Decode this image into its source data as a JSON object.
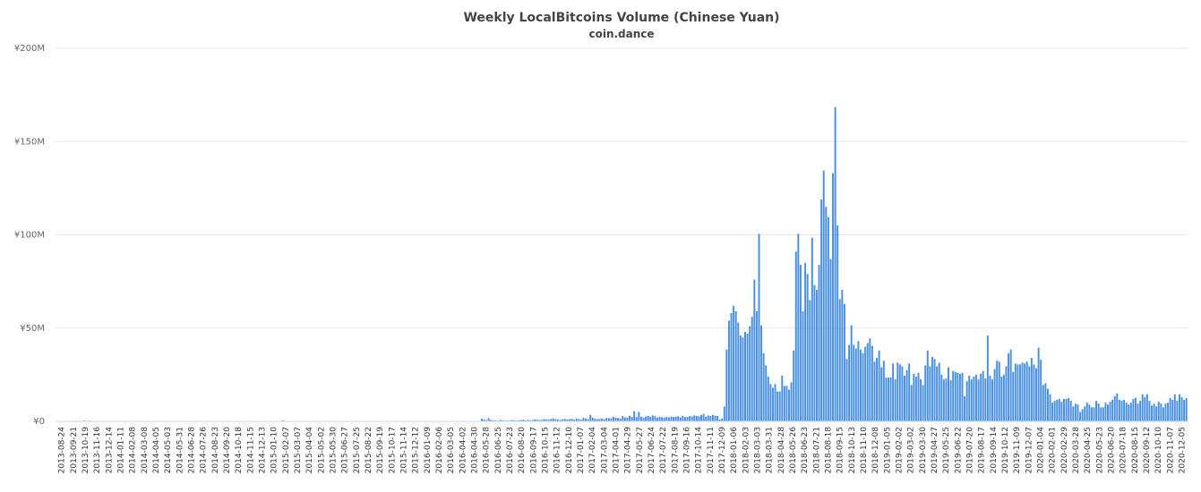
{
  "chart_data": {
    "type": "bar",
    "title": "Weekly LocalBitcoins Volume (Chinese Yuan)",
    "subtitle": "coin.dance",
    "xlabel": "",
    "ylabel": "",
    "ylim": [
      0,
      200000000
    ],
    "yticks": [
      {
        "value": 0,
        "label": "¥0"
      },
      {
        "value": 50000000,
        "label": "¥50M"
      },
      {
        "value": 100000000,
        "label": "¥100M"
      },
      {
        "value": 150000000,
        "label": "¥150M"
      },
      {
        "value": 200000000,
        "label": "¥200M"
      }
    ],
    "grid": true,
    "legend": "none",
    "bar_color": "#4a90e2",
    "x_tick_labels": [
      "2013-08-24",
      "2013-09-21",
      "2013-10-19",
      "2013-11-16",
      "2013-12-14",
      "2014-01-11",
      "2014-02-08",
      "2014-03-08",
      "2014-04-05",
      "2014-05-03",
      "2014-05-31",
      "2014-06-28",
      "2014-07-26",
      "2014-08-23",
      "2014-09-20",
      "2014-10-18",
      "2014-11-15",
      "2014-12-13",
      "2015-01-10",
      "2015-02-07",
      "2015-03-07",
      "2015-04-04",
      "2015-05-02",
      "2015-05-30",
      "2015-06-27",
      "2015-07-25",
      "2015-08-22",
      "2015-09-19",
      "2015-10-17",
      "2015-11-14",
      "2015-12-12",
      "2016-01-09",
      "2016-02-06",
      "2016-03-05",
      "2016-04-02",
      "2016-04-30",
      "2016-05-28",
      "2016-06-25",
      "2016-07-23",
      "2016-08-20",
      "2016-09-17",
      "2016-10-15",
      "2016-11-12",
      "2016-12-10",
      "2017-01-07",
      "2017-02-04",
      "2017-03-04",
      "2017-04-01",
      "2017-04-29",
      "2017-05-27",
      "2017-06-24",
      "2017-07-22",
      "2017-08-19",
      "2017-09-16",
      "2017-10-14",
      "2017-11-11",
      "2017-12-09",
      "2018-01-06",
      "2018-02-03",
      "2018-03-03",
      "2018-03-31",
      "2018-04-28",
      "2018-05-26",
      "2018-06-23",
      "2018-07-21",
      "2018-08-18",
      "2018-09-15",
      "2018-10-13",
      "2018-11-10",
      "2018-12-08",
      "2019-01-05",
      "2019-02-02",
      "2019-03-02",
      "2019-03-30",
      "2019-04-27",
      "2019-05-25",
      "2019-06-22",
      "2019-07-20",
      "2019-08-17",
      "2019-09-14",
      "2019-10-12",
      "2019-11-09",
      "2019-12-07",
      "2020-01-04",
      "2020-02-01",
      "2020-02-29",
      "2020-03-28",
      "2020-04-25",
      "2020-05-23",
      "2020-06-20",
      "2020-07-18",
      "2020-08-15",
      "2020-09-12",
      "2020-10-10",
      "2020-11-07",
      "2020-12-05"
    ],
    "values_millions": [
      0.1,
      0.1,
      0.1,
      0.1,
      0.2,
      0.1,
      0.1,
      0.1,
      0.3,
      0.2,
      0.1,
      0.1,
      0.5,
      0.1,
      0.4,
      0.2,
      0.1,
      0.1,
      0.1,
      0.1,
      0.1,
      0.1,
      0.1,
      0.1,
      0.1,
      0.1,
      0.1,
      0.1,
      0.1,
      0.1,
      0.1,
      0.1,
      0.1,
      0.1,
      0.1,
      0.1,
      0.1,
      0.1,
      0.1,
      0.1,
      0.1,
      0.1,
      0.1,
      0.1,
      0.1,
      0.1,
      0.1,
      0.1,
      0.1,
      0.1,
      0.1,
      0.1,
      0.1,
      0.1,
      0.1,
      0.1,
      0.1,
      0.1,
      0.1,
      0.1,
      0.1,
      0.1,
      0.1,
      0.1,
      0.1,
      0.1,
      0.1,
      0.1,
      0.1,
      0.1,
      0.1,
      0.1,
      0.1,
      0.1,
      0.1,
      0.1,
      0.1,
      0.1,
      0.1,
      0.1,
      0.1,
      0.1,
      0.1,
      0.1,
      0.1,
      0.1,
      0.1,
      0.1,
      0.1,
      0.1,
      0.1,
      0.1,
      0.1,
      0.1,
      0.1,
      0.1,
      0.2,
      0.2,
      0.5,
      0.3,
      0.2,
      0.2,
      0.2,
      0.2,
      0.1,
      0.1,
      0.1,
      0.1,
      0.1,
      0.1,
      0.1,
      0.1,
      0.1,
      0.1,
      0.1,
      0.1,
      0.1,
      0.1,
      0.1,
      0.1,
      0.1,
      0.1,
      0.1,
      0.1,
      0.1,
      0.1,
      0.1,
      0.1,
      0.1,
      0.1,
      0.1,
      0.1,
      0.1,
      0.1,
      0.1,
      0.1,
      0.1,
      0.1,
      0.1,
      0.1,
      0.2,
      0.1,
      0.1,
      0.1,
      0.2,
      0.1,
      0.1,
      0.1,
      0.1,
      0.1,
      0.1,
      0.1,
      0.1,
      0.1,
      0.1,
      0.1,
      0.1,
      0.1,
      0.1,
      0.1,
      0.1,
      0.1,
      0.1,
      0.1,
      0.1,
      0.1,
      0.1,
      0.1,
      0.1,
      0.1,
      0.1,
      0.1,
      0.1,
      0.1,
      0.1,
      0.1,
      0.1,
      0.1,
      0.1,
      0.1,
      0.1,
      0.1,
      0.1,
      0.1,
      1.5,
      1.0,
      0.7,
      1.7,
      0.8,
      0.6,
      0.5,
      0.4,
      0.8,
      0.6,
      0.4,
      0.5,
      0.4,
      0.7,
      0.6,
      0.4,
      0.6,
      0.7,
      0.9,
      0.5,
      0.8,
      0.6,
      0.7,
      1.1,
      0.9,
      0.7,
      0.8,
      1.2,
      1.0,
      0.9,
      1.3,
      1.5,
      1.2,
      1.0,
      0.8,
      1.1,
      1.3,
      1.0,
      1.2,
      1.4,
      0.9,
      1.5,
      1.2,
      1.0,
      2.0,
      1.5,
      1.2,
      3.5,
      2.0,
      1.4,
      1.2,
      1.3,
      1.5,
      1.2,
      1.8,
      1.7,
      1.6,
      2.4,
      2.0,
      1.8,
      1.5,
      2.8,
      2.2,
      2.0,
      3.0,
      2.5,
      5.5,
      2.3,
      5.0,
      2.5,
      2.0,
      2.6,
      2.9,
      2.4,
      3.2,
      2.8,
      2.0,
      2.5,
      2.2,
      2.0,
      2.4,
      2.1,
      2.6,
      2.3,
      2.5,
      2.7,
      2.1,
      3.0,
      2.3,
      2.4,
      2.8,
      2.6,
      3.2,
      2.9,
      2.7,
      3.5,
      4.0,
      2.5,
      3.2,
      2.8,
      3.5,
      3.0,
      2.9,
      1.0,
      1.5,
      8.0,
      38.5,
      54.0,
      58.0,
      62.0,
      59.0,
      53.0,
      46.0,
      45.0,
      48.0,
      47.0,
      51.0,
      56.0,
      76.0,
      59.0,
      100.5,
      51.5,
      36.5,
      30.0,
      24.0,
      20.0,
      18.0,
      20.0,
      16.0,
      16.0,
      24.5,
      19.0,
      19.0,
      17.0,
      21.0,
      38.0,
      91.0,
      100.5,
      84.0,
      59.0,
      85.0,
      79.0,
      65.0,
      98.5,
      73.0,
      70.5,
      84.0,
      119.0,
      134.5,
      115.0,
      109.5,
      87.0,
      133.0,
      168.5,
      105.0,
      65.5,
      70.5,
      63.0,
      33.5,
      41.0,
      51.5,
      41.0,
      39.0,
      43.0,
      38.5,
      36.5,
      40.0,
      42.0,
      44.5,
      40.5,
      32.0,
      34.0,
      38.0,
      29.0,
      32.5,
      23.5,
      23.5,
      23.5,
      31.0,
      22.5,
      31.5,
      30.5,
      29.5,
      24.5,
      27.5,
      31.0,
      19.5,
      25.5,
      24.0,
      26.0,
      22.5,
      19.5,
      30.0,
      38.0,
      29.5,
      34.5,
      33.5,
      29.5,
      31.5,
      25.0,
      22.5,
      23.0,
      29.0,
      22.0,
      27.0,
      26.5,
      26.0,
      25.5,
      26.0,
      13.5,
      21.5,
      24.5,
      22.5,
      24.0,
      25.0,
      22.5,
      25.5,
      27.0,
      23.0,
      46.0,
      24.5,
      22.5,
      28.0,
      32.5,
      32.0,
      24.0,
      25.0,
      29.5,
      36.5,
      38.5,
      26.5,
      31.0,
      30.5,
      30.5,
      31.5,
      31.0,
      32.0,
      29.5,
      34.0,
      30.5,
      28.5,
      39.5,
      33.0,
      19.5,
      20.5,
      17.5,
      14.5,
      10.0,
      11.0,
      11.5,
      12.0,
      10.5,
      12.0,
      12.0,
      12.5,
      11.0,
      8.0,
      9.5,
      9.0,
      5.0,
      6.5,
      8.0,
      10.0,
      9.0,
      7.5,
      7.5,
      11.0,
      9.5,
      7.5,
      7.5,
      10.0,
      9.0,
      10.5,
      11.5,
      13.5,
      15.0,
      11.5,
      11.0,
      11.5,
      10.0,
      9.0,
      10.0,
      12.0,
      12.5,
      9.5,
      11.0,
      14.5,
      13.0,
      14.5,
      11.0,
      8.5,
      9.5,
      8.0,
      10.5,
      9.5,
      7.5,
      9.5,
      10.0,
      12.5,
      11.5,
      14.5,
      11.0,
      14.5,
      13.0,
      11.5,
      12.5
    ]
  }
}
